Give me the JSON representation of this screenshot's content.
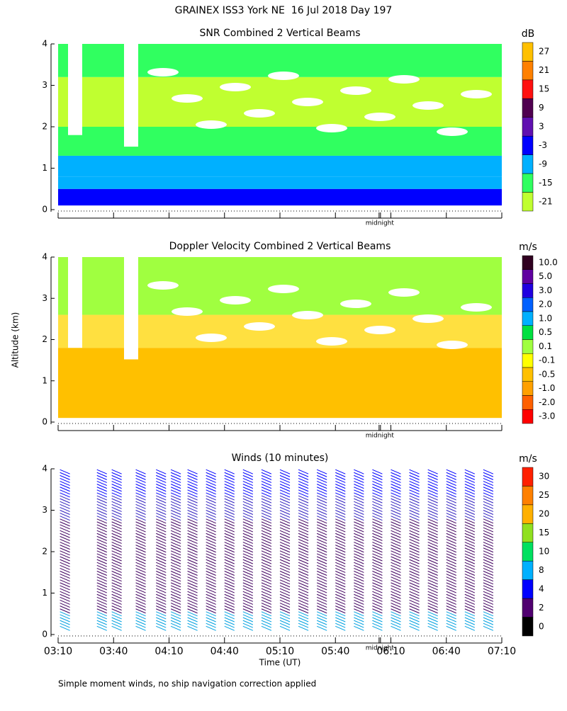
{
  "title": "GRAINEX ISS3 York NE  16 Jul 2018 Day 197",
  "ylabel": "Altitude (km)",
  "xlabel": "Time (UT)",
  "note": "Simple moment winds, no ship navigation correction applied",
  "xlim": [
    190,
    430
  ],
  "xticks": [
    {
      "value": 190,
      "label": "03:10"
    },
    {
      "value": 220,
      "label": "03:40"
    },
    {
      "value": 250,
      "label": "04:10"
    },
    {
      "value": 280,
      "label": "04:40"
    },
    {
      "value": 310,
      "label": "05:10"
    },
    {
      "value": 340,
      "label": "05:40"
    },
    {
      "value": 370,
      "label": "06:10"
    },
    {
      "value": 400,
      "label": "06:40"
    },
    {
      "value": 430,
      "label": "07:10"
    }
  ],
  "annotation": {
    "text": "midnight",
    "x": 364
  },
  "chart_data": [
    {
      "type": "heatmap",
      "title": "SNR Combined 2 Vertical Beams",
      "ylim": [
        0,
        4
      ],
      "yticks": [
        0,
        1,
        2,
        3,
        4
      ],
      "colorbar": {
        "unit": "dB",
        "levels": [
          27,
          21,
          15,
          9,
          3,
          -3,
          -9,
          -15,
          -21
        ],
        "colors": [
          "#ffc000",
          "#ff8000",
          "#ff1010",
          "#500050",
          "#6010b0",
          "#0000ff",
          "#00b0ff",
          "#30ff60",
          "#c0ff30"
        ]
      },
      "bands": [
        {
          "y": [
            0.1,
            0.5
          ],
          "color": "#0000ff"
        },
        {
          "y": [
            0.5,
            0.8
          ],
          "color": "#00b0ff"
        },
        {
          "y": [
            0.8,
            1.3
          ],
          "color": "#00b0ff"
        },
        {
          "y": [
            1.3,
            2.0
          ],
          "color": "#30ff60"
        },
        {
          "y": [
            2.0,
            3.2
          ],
          "color": "#c0ff30"
        },
        {
          "y": [
            3.2,
            4.0
          ],
          "color": "#30ff60"
        }
      ]
    },
    {
      "type": "heatmap",
      "title": "Doppler Velocity Combined 2 Vertical Beams",
      "ylim": [
        0,
        4
      ],
      "yticks": [
        0,
        1,
        2,
        3,
        4
      ],
      "colorbar": {
        "unit": "m/s",
        "levels": [
          {
            "value": 10,
            "label": "10.0"
          },
          {
            "value": 5,
            "label": "5.0"
          },
          {
            "value": 3,
            "label": "3.0"
          },
          {
            "value": 2,
            "label": "2.0"
          },
          {
            "value": 1,
            "label": "1.0"
          },
          0.5,
          0.1,
          -0.1,
          -0.5,
          {
            "value": -1,
            "label": "-1.0"
          },
          {
            "value": -2,
            "label": "-2.0"
          },
          {
            "value": -3,
            "label": "-3.0"
          }
        ],
        "colors": [
          "#300020",
          "#6000a0",
          "#2000e0",
          "#0060ff",
          "#00b0ff",
          "#00e040",
          "#a0ff40",
          "#ffff00",
          "#ffc000",
          "#ffa000",
          "#ff6000",
          "#ff0000"
        ]
      },
      "bands": [
        {
          "y": [
            0.1,
            1.8
          ],
          "color": "#ffc000"
        },
        {
          "y": [
            1.8,
            2.6
          ],
          "color": "#ffe040"
        },
        {
          "y": [
            2.6,
            4.0
          ],
          "color": "#a0ff40"
        }
      ]
    },
    {
      "type": "barbs",
      "title": "Winds (10 minutes)",
      "ylim": [
        0,
        4
      ],
      "yticks": [
        0,
        1,
        2,
        3,
        4
      ],
      "colorbar": {
        "unit": "m/s",
        "levels": [
          30,
          25,
          20,
          15,
          10,
          8,
          4,
          2,
          0
        ],
        "colors": [
          "#ff2000",
          "#ff8000",
          "#ffb000",
          "#90e020",
          "#00e060",
          "#00b0ff",
          "#0000ff",
          "#500070",
          "#000000"
        ]
      },
      "times": [
        191,
        211,
        219,
        232,
        243,
        251,
        260,
        270,
        280,
        290,
        300,
        310,
        320,
        330,
        340,
        350,
        360,
        370,
        380,
        390,
        400,
        410,
        420
      ]
    }
  ]
}
